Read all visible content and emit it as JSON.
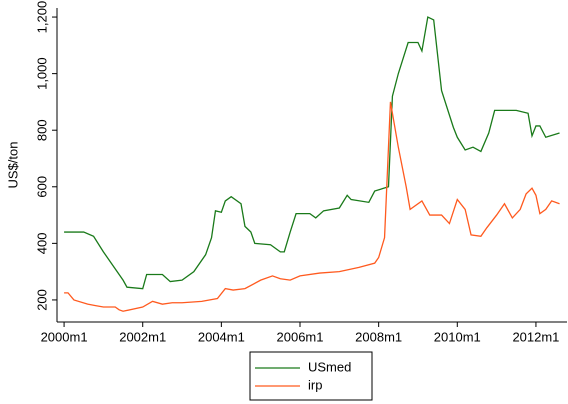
{
  "chart_data": {
    "type": "line",
    "y_label": "US$/ton",
    "xlim": [
      1999.82,
      2012.79
    ],
    "xticks": [
      {
        "value": 2000,
        "label": "2000m1"
      },
      {
        "value": 2002,
        "label": "2002m1"
      },
      {
        "value": 2004,
        "label": "2004m1"
      },
      {
        "value": 2006,
        "label": "2006m1"
      },
      {
        "value": 2008,
        "label": "2008m1"
      },
      {
        "value": 2010,
        "label": "2010m1"
      },
      {
        "value": 2012,
        "label": "2012m1"
      }
    ],
    "ylim": [
      122,
      1232
    ],
    "yticks": [
      200,
      400,
      600,
      800,
      {
        "value": 1000,
        "label": "1,000"
      },
      {
        "value": 1200,
        "label": "1,200"
      }
    ],
    "series": [
      {
        "name": "USmed",
        "color": "#1a7a1a",
        "x": [
          2000.0,
          2000.5,
          2000.75,
          2001.0,
          2001.25,
          2001.5,
          2001.6,
          2002.0,
          2002.1,
          2002.5,
          2002.7,
          2003.0,
          2003.3,
          2003.6,
          2003.75,
          2003.85,
          2004.0,
          2004.1,
          2004.25,
          2004.5,
          2004.6,
          2004.75,
          2004.85,
          2005.25,
          2005.5,
          2005.6,
          2005.75,
          2005.9,
          2006.25,
          2006.4,
          2006.6,
          2007.0,
          2007.2,
          2007.3,
          2007.75,
          2007.9,
          2008.25,
          2008.35,
          2008.5,
          2008.75,
          2009.0,
          2009.1,
          2009.25,
          2009.4,
          2009.6,
          2009.9,
          2010.0,
          2010.2,
          2010.4,
          2010.6,
          2010.8,
          2010.95,
          2011.5,
          2011.8,
          2011.9,
          2012.0,
          2012.1,
          2012.25,
          2012.6
        ],
        "values": [
          440,
          440,
          425,
          370,
          320,
          270,
          245,
          240,
          290,
          290,
          265,
          270,
          300,
          360,
          420,
          515,
          510,
          550,
          565,
          540,
          460,
          440,
          400,
          395,
          370,
          370,
          440,
          505,
          505,
          490,
          515,
          525,
          570,
          555,
          545,
          585,
          600,
          920,
          1000,
          1110,
          1110,
          1080,
          1200,
          1190,
          940,
          810,
          775,
          730,
          740,
          725,
          790,
          870,
          870,
          860,
          780,
          815,
          815,
          775,
          790
        ]
      },
      {
        "name": "irp",
        "color": "#ff5a1f",
        "x": [
          2000.0,
          2000.1,
          2000.25,
          2000.6,
          2000.8,
          2001.0,
          2001.3,
          2001.4,
          2001.5,
          2002.0,
          2002.25,
          2002.5,
          2002.75,
          2003.0,
          2003.5,
          2003.9,
          2004.1,
          2004.3,
          2004.6,
          2005.0,
          2005.3,
          2005.5,
          2005.75,
          2006.0,
          2006.5,
          2007.0,
          2007.5,
          2007.9,
          2008.0,
          2008.15,
          2008.3,
          2008.5,
          2008.7,
          2008.8,
          2009.1,
          2009.3,
          2009.6,
          2009.8,
          2010.0,
          2010.2,
          2010.35,
          2010.6,
          2010.75,
          2011.0,
          2011.2,
          2011.4,
          2011.6,
          2011.75,
          2011.9,
          2012.0,
          2012.1,
          2012.25,
          2012.4,
          2012.6
        ],
        "values": [
          225,
          225,
          200,
          185,
          180,
          175,
          175,
          165,
          160,
          175,
          195,
          185,
          190,
          190,
          195,
          205,
          240,
          235,
          240,
          270,
          285,
          275,
          270,
          285,
          295,
          300,
          315,
          330,
          350,
          420,
          900,
          740,
          600,
          520,
          550,
          500,
          500,
          470,
          555,
          520,
          430,
          425,
          455,
          500,
          540,
          490,
          520,
          575,
          595,
          570,
          505,
          520,
          550,
          540
        ]
      }
    ]
  }
}
